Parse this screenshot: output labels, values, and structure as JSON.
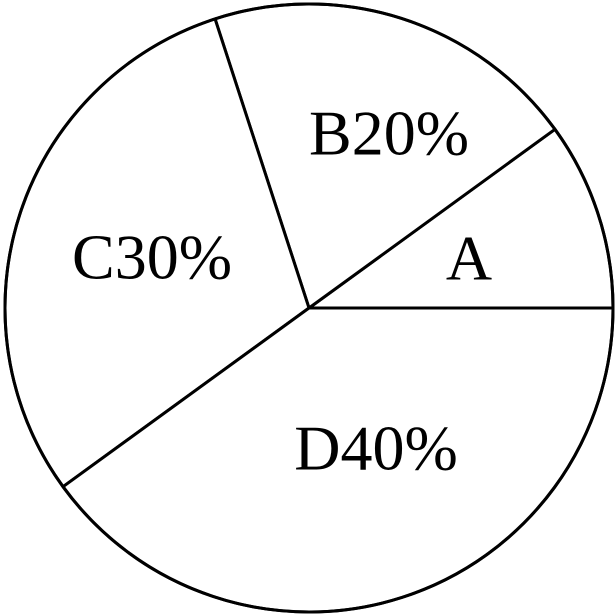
{
  "chart_data": {
    "type": "pie",
    "slices": [
      {
        "label": "A",
        "value": 10
      },
      {
        "label": "B",
        "value": 20
      },
      {
        "label": "C",
        "value": 30
      },
      {
        "label": "D",
        "value": 40
      }
    ],
    "slice_labels": [
      "A",
      "B20%",
      "C30%",
      "D40%"
    ],
    "start": "3 o'clock",
    "direction": "counterclockwise",
    "fill_color": "#ffffff",
    "stroke_color": "#000000"
  }
}
